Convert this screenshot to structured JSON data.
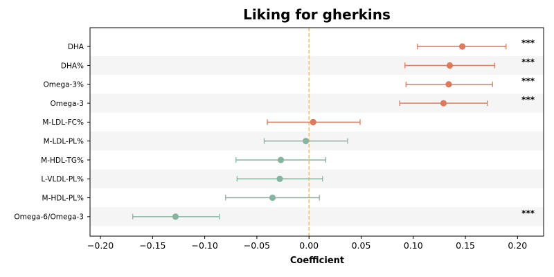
{
  "chart_data": {
    "type": "scatter",
    "title": "Liking for gherkins",
    "xlabel": "Coefficient",
    "ylabel": "",
    "xlim": [
      -0.21,
      0.225
    ],
    "xticks": [
      -0.2,
      -0.15,
      -0.1,
      -0.05,
      0.0,
      0.05,
      0.1,
      0.15,
      0.2
    ],
    "xtick_labels": [
      "−0.20",
      "−0.15",
      "−0.10",
      "−0.05",
      "0.00",
      "0.05",
      "0.10",
      "0.15",
      "0.20"
    ],
    "reference_line": 0,
    "grid": false,
    "colors": {
      "positive": "#dd7a5e",
      "negative": "#86b59f",
      "zero_line": "#f3c27e",
      "band": "#f5f5f5"
    },
    "rows": [
      {
        "label": "DHA",
        "coef": 0.147,
        "lo": 0.104,
        "hi": 0.189,
        "sig": "***"
      },
      {
        "label": "DHA%",
        "coef": 0.135,
        "lo": 0.092,
        "hi": 0.178,
        "sig": "***"
      },
      {
        "label": "Omega-3%",
        "coef": 0.134,
        "lo": 0.093,
        "hi": 0.176,
        "sig": "***"
      },
      {
        "label": "Omega-3",
        "coef": 0.129,
        "lo": 0.087,
        "hi": 0.171,
        "sig": "***"
      },
      {
        "label": "M-LDL-FC%",
        "coef": 0.004,
        "lo": -0.04,
        "hi": 0.049,
        "sig": ""
      },
      {
        "label": "M-LDL-PL%",
        "coef": -0.003,
        "lo": -0.043,
        "hi": 0.037,
        "sig": ""
      },
      {
        "label": "M-HDL-TG%",
        "coef": -0.027,
        "lo": -0.07,
        "hi": 0.016,
        "sig": ""
      },
      {
        "label": "L-VLDL-PL%",
        "coef": -0.028,
        "lo": -0.069,
        "hi": 0.013,
        "sig": ""
      },
      {
        "label": "M-HDL-PL%",
        "coef": -0.035,
        "lo": -0.08,
        "hi": 0.01,
        "sig": ""
      },
      {
        "label": "Omega-6/Omega-3",
        "coef": -0.128,
        "lo": -0.169,
        "hi": -0.086,
        "sig": "***"
      }
    ]
  }
}
